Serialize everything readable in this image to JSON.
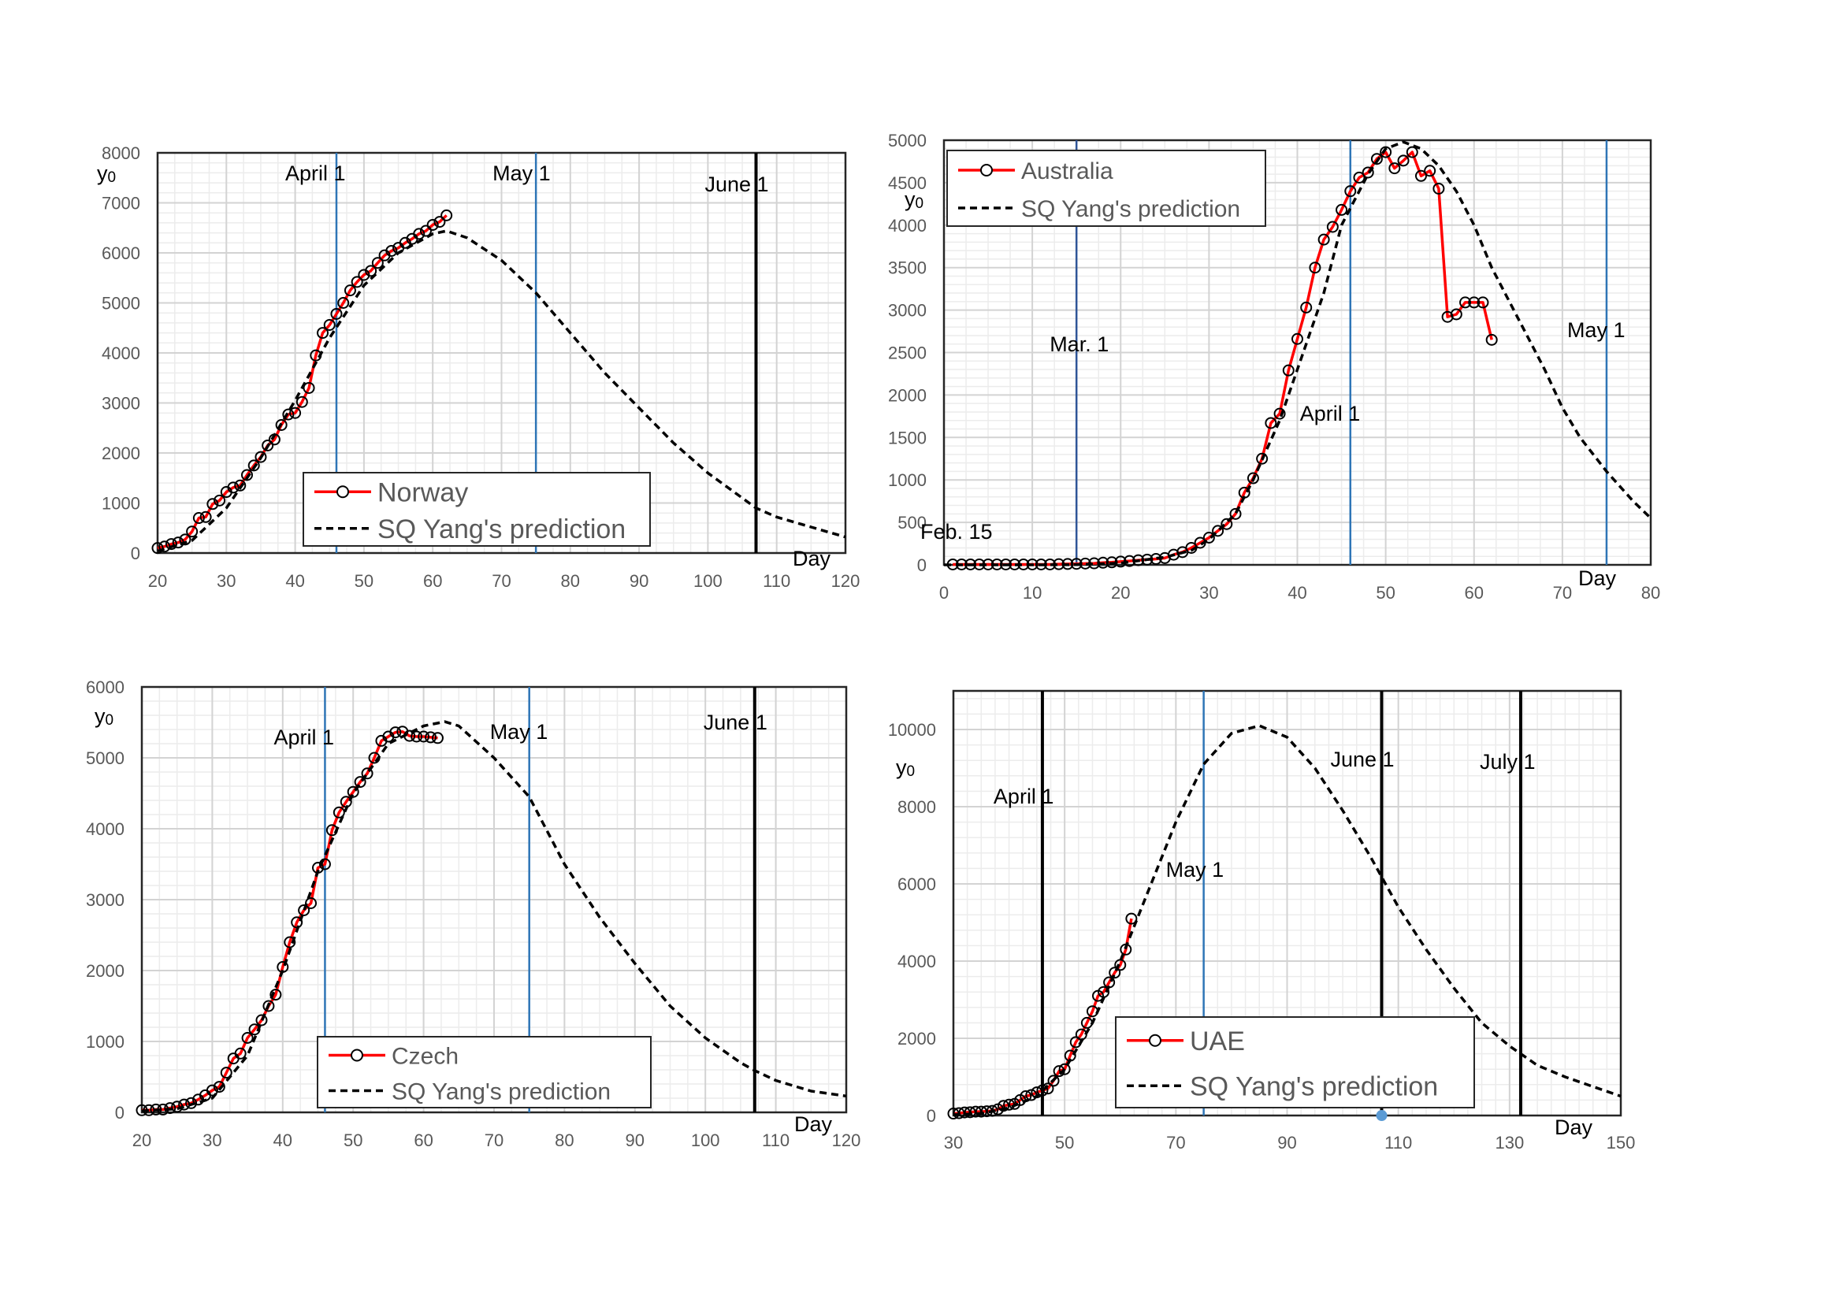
{
  "chart_data": [
    {
      "type": "line",
      "xlabel": "Day",
      "ylabel": "y0",
      "xlim": [
        20,
        120
      ],
      "ylim": [
        0,
        8000
      ],
      "x_ticks": [
        20,
        30,
        40,
        50,
        60,
        70,
        80,
        90,
        100,
        110,
        120
      ],
      "y_ticks": [
        0,
        1000,
        2000,
        3000,
        4000,
        5000,
        6000,
        7000,
        8000
      ],
      "grid": true,
      "legend_position": "bottom-center",
      "date_markers": [
        {
          "label": "April 1",
          "x": 46,
          "color": "#2e75b6"
        },
        {
          "label": "May 1",
          "x": 75,
          "color": "#2e75b6"
        },
        {
          "label": "June 1",
          "x": 107,
          "color": "#000000"
        }
      ],
      "series": [
        {
          "name": "Norway",
          "style": "red-line-open-circles",
          "color": "#ff0000",
          "x": [
            20,
            21,
            22,
            23,
            24,
            25,
            26,
            27,
            28,
            29,
            30,
            31,
            32,
            33,
            34,
            35,
            36,
            37,
            38,
            39,
            40,
            41,
            42,
            43,
            44,
            45,
            46,
            47,
            48,
            49,
            50,
            51,
            52,
            53,
            54,
            55,
            56,
            57,
            58,
            59,
            60,
            61,
            62
          ],
          "y": [
            100,
            130,
            180,
            210,
            270,
            430,
            700,
            720,
            980,
            1050,
            1220,
            1310,
            1350,
            1560,
            1750,
            1920,
            2150,
            2270,
            2560,
            2770,
            2800,
            3020,
            3300,
            3950,
            4400,
            4560,
            4780,
            5000,
            5250,
            5420,
            5560,
            5640,
            5800,
            5950,
            6040,
            6100,
            6200,
            6280,
            6380,
            6440,
            6560,
            6620,
            6750
          ]
        },
        {
          "name": "SQ Yang's prediction",
          "style": "black-dashed",
          "color": "#000000",
          "x": [
            20,
            25,
            30,
            35,
            40,
            45,
            50,
            55,
            60,
            62,
            65,
            70,
            75,
            80,
            85,
            90,
            95,
            100,
            105,
            107,
            110,
            115,
            120
          ],
          "y": [
            40,
            250,
            900,
            1900,
            3050,
            4300,
            5350,
            6000,
            6380,
            6440,
            6300,
            5850,
            5200,
            4400,
            3600,
            2900,
            2200,
            1600,
            1100,
            900,
            720,
            520,
            320
          ]
        }
      ]
    },
    {
      "type": "line",
      "xlabel": "Day",
      "ylabel": "y0",
      "xlim": [
        0,
        80
      ],
      "ylim": [
        0,
        5000
      ],
      "x_ticks": [
        0,
        10,
        20,
        30,
        40,
        50,
        60,
        70,
        80
      ],
      "y_ticks": [
        0,
        500,
        1000,
        1500,
        2000,
        2500,
        3000,
        3500,
        4000,
        4500,
        5000
      ],
      "grid": true,
      "legend_position": "top-left",
      "annotations": [
        "Feb. 15"
      ],
      "date_markers": [
        {
          "label": "Mar. 1",
          "x": 15,
          "color": "#2f5597"
        },
        {
          "label": "April 1",
          "x": 46,
          "color": "#2e75b6"
        },
        {
          "label": "May 1",
          "x": 75,
          "color": "#2e75b6"
        }
      ],
      "series": [
        {
          "name": "Australia",
          "style": "red-line-open-circles",
          "color": "#ff0000",
          "x": [
            1,
            2,
            3,
            4,
            5,
            6,
            7,
            8,
            9,
            10,
            11,
            12,
            13,
            14,
            15,
            16,
            17,
            18,
            19,
            20,
            21,
            22,
            23,
            24,
            25,
            26,
            27,
            28,
            29,
            30,
            31,
            32,
            33,
            34,
            35,
            36,
            37,
            38,
            39,
            40,
            41,
            42,
            43,
            44,
            45,
            46,
            47,
            48,
            49,
            50,
            51,
            52,
            53,
            54,
            55,
            56,
            57,
            58,
            59,
            60,
            61,
            62
          ],
          "y": [
            5,
            5,
            5,
            5,
            5,
            5,
            5,
            5,
            5,
            5,
            5,
            5,
            8,
            10,
            12,
            15,
            18,
            25,
            30,
            38,
            45,
            55,
            62,
            70,
            80,
            120,
            150,
            200,
            260,
            320,
            400,
            480,
            600,
            850,
            1020,
            1250,
            1670,
            1780,
            2290,
            2660,
            3030,
            3500,
            3830,
            3980,
            4180,
            4400,
            4560,
            4620,
            4780,
            4860,
            4670,
            4760,
            4860,
            4580,
            4640,
            4430,
            2920,
            2950,
            3090,
            3090,
            3090,
            2650
          ]
        },
        {
          "name": "SQ Yang's prediction",
          "style": "black-dashed",
          "color": "#000000",
          "x": [
            0,
            5,
            10,
            15,
            20,
            25,
            28,
            30,
            33,
            35,
            38,
            40,
            43,
            45,
            48,
            50,
            52,
            54,
            56,
            58,
            60,
            62,
            65,
            68,
            70,
            72,
            75,
            78,
            80
          ],
          "y": [
            0,
            0,
            0,
            2,
            20,
            90,
            170,
            300,
            600,
            1000,
            1700,
            2300,
            3200,
            4000,
            4600,
            4900,
            4980,
            4900,
            4700,
            4400,
            4000,
            3500,
            2900,
            2300,
            1850,
            1500,
            1100,
            750,
            550
          ]
        }
      ]
    },
    {
      "type": "line",
      "xlabel": "Day",
      "ylabel": "y0",
      "xlim": [
        20,
        120
      ],
      "ylim": [
        0,
        6000
      ],
      "x_ticks": [
        20,
        30,
        40,
        50,
        60,
        70,
        80,
        90,
        100,
        110,
        120
      ],
      "y_ticks": [
        0,
        1000,
        2000,
        3000,
        4000,
        5000,
        6000
      ],
      "grid": true,
      "legend_position": "bottom-center",
      "date_markers": [
        {
          "label": "April 1",
          "x": 46,
          "color": "#2e75b6"
        },
        {
          "label": "May 1",
          "x": 75,
          "color": "#2e75b6"
        },
        {
          "label": "June 1",
          "x": 107,
          "color": "#000000"
        }
      ],
      "series": [
        {
          "name": "Czech",
          "style": "red-line-open-circles",
          "color": "#ff0000",
          "x": [
            20,
            21,
            22,
            23,
            24,
            25,
            26,
            27,
            28,
            29,
            30,
            31,
            32,
            33,
            34,
            35,
            36,
            37,
            38,
            39,
            40,
            41,
            42,
            43,
            44,
            45,
            46,
            47,
            48,
            49,
            50,
            51,
            52,
            53,
            54,
            55,
            56,
            57,
            58,
            59,
            60,
            61,
            62
          ],
          "y": [
            30,
            30,
            40,
            40,
            60,
            80,
            110,
            130,
            180,
            240,
            310,
            360,
            560,
            760,
            830,
            1050,
            1170,
            1300,
            1500,
            1660,
            2050,
            2400,
            2680,
            2850,
            2950,
            3450,
            3500,
            3980,
            4230,
            4380,
            4520,
            4660,
            4780,
            5000,
            5240,
            5300,
            5360,
            5370,
            5310,
            5300,
            5300,
            5290,
            5280
          ]
        },
        {
          "name": "SQ Yang's prediction",
          "style": "black-dashed",
          "color": "#000000",
          "x": [
            20,
            25,
            30,
            35,
            40,
            45,
            50,
            55,
            60,
            63,
            65,
            70,
            75,
            80,
            85,
            90,
            95,
            100,
            105,
            107,
            110,
            115,
            120
          ],
          "y": [
            20,
            50,
            200,
            800,
            2000,
            3400,
            4500,
            5200,
            5450,
            5510,
            5450,
            5000,
            4450,
            3500,
            2750,
            2100,
            1500,
            1050,
            700,
            590,
            450,
            300,
            230
          ]
        }
      ]
    },
    {
      "type": "line",
      "xlabel": "Day",
      "ylabel": "y0",
      "xlim": [
        30,
        150
      ],
      "ylim": [
        0,
        11000
      ],
      "x_ticks": [
        30,
        50,
        70,
        90,
        110,
        130,
        150
      ],
      "y_ticks": [
        0,
        2000,
        4000,
        6000,
        8000,
        10000
      ],
      "grid": true,
      "legend_position": "bottom-center",
      "date_markers": [
        {
          "label": "April 1",
          "x": 46,
          "color": "#000000"
        },
        {
          "label": "May 1",
          "x": 75,
          "color": "#2e75b6"
        },
        {
          "label": "June 1",
          "x": 107,
          "color": "#000000"
        },
        {
          "label": "July 1",
          "x": 132,
          "color": "#000000"
        }
      ],
      "marker_point": {
        "x": 107,
        "y": 0,
        "color": "#5b9bd5"
      },
      "series": [
        {
          "name": "UAE",
          "style": "red-line-open-circles",
          "color": "#ff0000",
          "x": [
            30,
            31,
            32,
            33,
            34,
            35,
            36,
            37,
            38,
            39,
            40,
            41,
            42,
            43,
            44,
            45,
            46,
            47,
            48,
            49,
            50,
            51,
            52,
            53,
            54,
            55,
            56,
            57,
            58,
            59,
            60,
            61,
            62
          ],
          "y": [
            50,
            60,
            80,
            85,
            100,
            100,
            110,
            120,
            160,
            250,
            280,
            300,
            400,
            500,
            530,
            600,
            650,
            700,
            900,
            1150,
            1200,
            1550,
            1900,
            2100,
            2400,
            2700,
            3100,
            3200,
            3450,
            3700,
            3900,
            4300,
            5100
          ]
        },
        {
          "name": "SQ Yang's prediction",
          "style": "black-dashed",
          "color": "#000000",
          "x": [
            30,
            35,
            40,
            45,
            50,
            55,
            60,
            65,
            70,
            75,
            80,
            85,
            90,
            95,
            100,
            105,
            110,
            115,
            120,
            125,
            130,
            135,
            140,
            145,
            150
          ],
          "y": [
            20,
            50,
            200,
            500,
            1200,
            2400,
            4000,
            5800,
            7600,
            9100,
            9900,
            10100,
            9800,
            9000,
            7900,
            6700,
            5400,
            4300,
            3300,
            2400,
            1800,
            1300,
            1000,
            750,
            500
          ]
        }
      ]
    }
  ]
}
